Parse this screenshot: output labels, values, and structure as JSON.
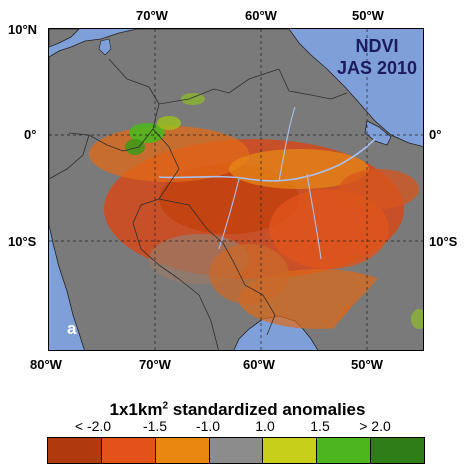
{
  "map": {
    "title_line1": "NDVI",
    "title_line2": "JAS 2010",
    "panel_label": "a",
    "top_ticks": [
      "70°W",
      "60°W",
      "50°W"
    ],
    "bottom_ticks": [
      "80°W",
      "70°W",
      "60°W",
      "50°W"
    ],
    "left_ticks": [
      "10°N",
      "0°",
      "10°S"
    ],
    "right_ticks": [
      "0°",
      "10°S"
    ],
    "colors": {
      "ocean": "#7f9fd9",
      "land": "#7a7a7a",
      "border": "#2e2e2e",
      "river": "#a9c0ee",
      "grid": "#222222"
    }
  },
  "legend": {
    "title_main": "1x1km",
    "title_sup": "2",
    "title_rest": " standardized anomalies",
    "ticks": [
      "< -2.0",
      "-1.5",
      "-1.0",
      "1.0",
      "1.5",
      "> 2.0"
    ],
    "colors": [
      "#b03a0e",
      "#e2531a",
      "#e8870f",
      "#8c8c8c",
      "#c8cf1a",
      "#4db61e",
      "#2e7d18"
    ]
  }
}
